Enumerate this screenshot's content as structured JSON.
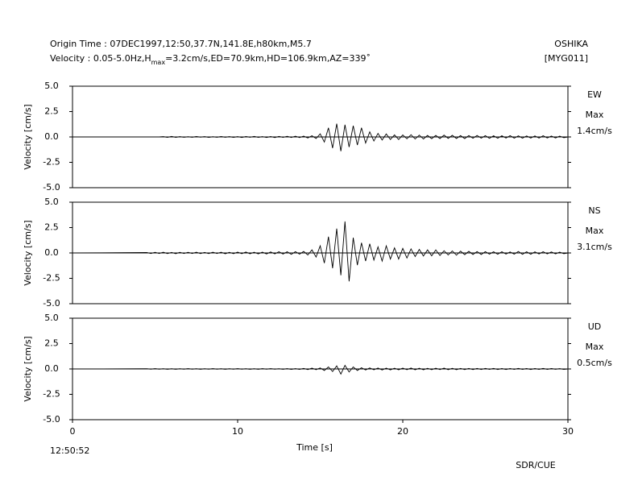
{
  "header": {
    "origin": "Origin Time : 07DEC1997,12:50,37.7N,141.8E,h80km,M5.7",
    "filter_a": "Velocity : 0.05-5.0Hz,H",
    "filter_sub": "max",
    "filter_b": "=3.2cm/s,ED=70.9km,HD=106.9km,AZ=339˚",
    "station": "OSHIKA",
    "code": "[MYG011]"
  },
  "footer": {
    "start_time": "12:50:52",
    "credit": "SDR/CUE"
  },
  "chart_data": [
    {
      "type": "line",
      "ylabel": "Velocity [cm/s]",
      "component": "EW",
      "max_label": "Max",
      "max_value": "1.4cm/s",
      "color": "#000000",
      "ylim": [
        -5,
        5
      ],
      "yticks": [
        {
          "value": 5,
          "label": "5.0"
        },
        {
          "value": 2.5,
          "label": "2.5"
        },
        {
          "value": 0,
          "label": "0.0"
        },
        {
          "value": -2.5,
          "label": "-2.5"
        },
        {
          "value": -5,
          "label": "-5.0"
        }
      ],
      "xlim": [
        0,
        30
      ],
      "x": [
        0,
        4.5,
        4.75,
        5,
        5.25,
        5.5,
        5.75,
        6,
        6.25,
        6.5,
        6.75,
        7,
        7.25,
        7.5,
        7.75,
        8,
        8.25,
        8.5,
        8.75,
        9,
        9.25,
        9.5,
        9.75,
        10,
        10.25,
        10.5,
        10.75,
        11,
        11.25,
        11.5,
        11.75,
        12,
        12.25,
        12.5,
        12.75,
        13,
        13.25,
        13.5,
        13.75,
        14,
        14.25,
        14.5,
        14.75,
        15,
        15.25,
        15.5,
        15.75,
        16,
        16.25,
        16.5,
        16.75,
        17,
        17.25,
        17.5,
        17.75,
        18,
        18.25,
        18.5,
        18.75,
        19,
        19.25,
        19.5,
        19.75,
        20,
        20.25,
        20.5,
        20.75,
        21,
        21.25,
        21.5,
        21.75,
        22,
        22.25,
        22.5,
        22.75,
        23,
        23.25,
        23.5,
        23.75,
        24,
        24.25,
        24.5,
        24.75,
        25,
        25.25,
        25.5,
        25.75,
        26,
        26.25,
        26.5,
        26.75,
        27,
        27.25,
        27.5,
        27.75,
        28,
        28.25,
        28.5,
        28.75,
        29,
        29.25,
        29.5,
        29.75,
        30
      ],
      "values": [
        0,
        0,
        0,
        0,
        0,
        0.03,
        -0.04,
        0.05,
        -0.04,
        0.03,
        -0.03,
        0.02,
        -0.03,
        0.04,
        -0.02,
        0.03,
        -0.04,
        0.02,
        -0.03,
        0.04,
        -0.03,
        0.03,
        -0.04,
        0.03,
        -0.05,
        0.04,
        -0.03,
        0.05,
        -0.04,
        0.03,
        -0.05,
        0.04,
        -0.06,
        0.05,
        -0.04,
        0.06,
        -0.05,
        0.07,
        -0.06,
        0.08,
        -0.1,
        0.12,
        -0.15,
        0.3,
        -0.5,
        0.9,
        -1.1,
        1.3,
        -1.4,
        1.2,
        -1.0,
        1.1,
        -0.8,
        0.9,
        -0.6,
        0.5,
        -0.4,
        0.35,
        -0.3,
        0.3,
        -0.25,
        0.2,
        -0.25,
        0.2,
        -0.18,
        0.22,
        -0.2,
        0.18,
        -0.2,
        0.15,
        -0.17,
        0.15,
        -0.16,
        0.18,
        -0.14,
        0.16,
        -0.15,
        0.13,
        -0.16,
        0.14,
        -0.13,
        0.15,
        -0.12,
        0.13,
        -0.14,
        0.12,
        -0.13,
        0.12,
        -0.11,
        0.13,
        -0.12,
        0.11,
        -0.12,
        0.1,
        -0.11,
        0.1,
        -0.11,
        0.12,
        -0.1,
        0.09,
        -0.1,
        0.08,
        -0.07,
        0
      ]
    },
    {
      "type": "line",
      "ylabel": "Velocity [cm/s]",
      "component": "NS",
      "max_label": "Max",
      "max_value": "3.1cm/s",
      "color": "#000000",
      "ylim": [
        -5,
        5
      ],
      "yticks": [
        {
          "value": 5,
          "label": "5.0"
        },
        {
          "value": 2.5,
          "label": "2.5"
        },
        {
          "value": 0,
          "label": "0.0"
        },
        {
          "value": -2.5,
          "label": "-2.5"
        },
        {
          "value": -5,
          "label": "-5.0"
        }
      ],
      "xlim": [
        0,
        30
      ],
      "x": [
        0,
        4.5,
        4.75,
        5,
        5.25,
        5.5,
        5.75,
        6,
        6.25,
        6.5,
        6.75,
        7,
        7.25,
        7.5,
        7.75,
        8,
        8.25,
        8.5,
        8.75,
        9,
        9.25,
        9.5,
        9.75,
        10,
        10.25,
        10.5,
        10.75,
        11,
        11.25,
        11.5,
        11.75,
        12,
        12.25,
        12.5,
        12.75,
        13,
        13.25,
        13.5,
        13.75,
        14,
        14.25,
        14.5,
        14.75,
        15,
        15.25,
        15.5,
        15.75,
        16,
        16.25,
        16.5,
        16.75,
        17,
        17.25,
        17.5,
        17.75,
        18,
        18.25,
        18.5,
        18.75,
        19,
        19.25,
        19.5,
        19.75,
        20,
        20.25,
        20.5,
        20.75,
        21,
        21.25,
        21.5,
        21.75,
        22,
        22.25,
        22.5,
        22.75,
        23,
        23.25,
        23.5,
        23.75,
        24,
        24.25,
        24.5,
        24.75,
        25,
        25.25,
        25.5,
        25.75,
        26,
        26.25,
        26.5,
        26.75,
        27,
        27.25,
        27.5,
        27.75,
        28,
        28.25,
        28.5,
        28.75,
        29,
        29.25,
        29.5,
        29.75,
        30
      ],
      "values": [
        0,
        0.04,
        -0.05,
        0.06,
        -0.05,
        0.07,
        -0.06,
        0.05,
        -0.07,
        0.06,
        -0.05,
        0.06,
        -0.05,
        0.07,
        -0.06,
        0.05,
        -0.06,
        0.07,
        -0.05,
        0.07,
        -0.08,
        0.06,
        -0.07,
        0.08,
        -0.07,
        0.09,
        -0.08,
        0.07,
        -0.09,
        0.08,
        -0.1,
        0.1,
        -0.09,
        0.12,
        -0.11,
        0.12,
        -0.14,
        0.13,
        -0.12,
        0.15,
        -0.2,
        0.3,
        -0.4,
        0.7,
        -1.0,
        1.6,
        -1.5,
        2.4,
        -2.2,
        3.1,
        -2.8,
        1.5,
        -1.2,
        1.0,
        -0.8,
        0.9,
        -0.7,
        0.6,
        -0.8,
        0.7,
        -0.6,
        0.5,
        -0.6,
        0.45,
        -0.5,
        0.4,
        -0.35,
        0.35,
        -0.3,
        0.3,
        -0.28,
        0.3,
        -0.25,
        0.22,
        -0.2,
        0.2,
        -0.22,
        0.18,
        -0.17,
        0.16,
        -0.15,
        0.14,
        -0.15,
        0.13,
        -0.12,
        0.12,
        -0.13,
        0.12,
        -0.11,
        0.1,
        -0.12,
        0.15,
        -0.14,
        0.12,
        -0.13,
        0.11,
        -0.1,
        0.12,
        -0.09,
        0.1,
        -0.09,
        0.08,
        -0.07,
        0
      ]
    },
    {
      "type": "line",
      "ylabel": "Velocity [cm/s]",
      "component": "UD",
      "max_label": "Max",
      "max_value": "0.5cm/s",
      "color": "#000000",
      "ylim": [
        -5,
        5
      ],
      "yticks": [
        {
          "value": 5,
          "label": "5.0"
        },
        {
          "value": 2.5,
          "label": "2.5"
        },
        {
          "value": 0,
          "label": "0.0"
        },
        {
          "value": -2.5,
          "label": "-2.5"
        },
        {
          "value": -5,
          "label": "-5.0"
        }
      ],
      "xlim": [
        0,
        30
      ],
      "xticks": [
        0,
        10,
        20,
        30
      ],
      "xlabel": "Time [s]",
      "x": [
        0,
        4.5,
        4.75,
        5,
        5.25,
        5.5,
        5.75,
        6,
        6.25,
        6.5,
        6.75,
        7,
        7.25,
        7.5,
        7.75,
        8,
        8.25,
        8.5,
        8.75,
        9,
        9.25,
        9.5,
        9.75,
        10,
        10.25,
        10.5,
        10.75,
        11,
        11.25,
        11.5,
        11.75,
        12,
        12.25,
        12.5,
        12.75,
        13,
        13.25,
        13.5,
        13.75,
        14,
        14.25,
        14.5,
        14.75,
        15,
        15.25,
        15.5,
        15.75,
        16,
        16.25,
        16.5,
        16.75,
        17,
        17.25,
        17.5,
        17.75,
        18,
        18.25,
        18.5,
        18.75,
        19,
        19.25,
        19.5,
        19.75,
        20,
        20.25,
        20.5,
        20.75,
        21,
        21.25,
        21.5,
        21.75,
        22,
        22.25,
        22.5,
        22.75,
        23,
        23.25,
        23.5,
        23.75,
        24,
        24.25,
        24.5,
        24.75,
        25,
        25.25,
        25.5,
        25.75,
        26,
        26.25,
        26.5,
        26.75,
        27,
        27.25,
        27.5,
        27.75,
        28,
        28.25,
        28.5,
        28.75,
        29,
        29.25,
        29.5,
        29.75,
        30
      ],
      "values": [
        0,
        0.02,
        -0.02,
        0.03,
        -0.02,
        0.02,
        -0.03,
        0.02,
        -0.03,
        0.02,
        -0.02,
        0.03,
        -0.02,
        0.02,
        -0.03,
        0.02,
        -0.02,
        0.03,
        -0.02,
        0.02,
        -0.03,
        0.02,
        -0.02,
        0.03,
        -0.02,
        0.02,
        -0.03,
        0.02,
        -0.03,
        0.03,
        -0.02,
        0.03,
        -0.02,
        0.02,
        -0.03,
        0.03,
        -0.04,
        0.03,
        -0.04,
        0.05,
        -0.06,
        0.08,
        -0.07,
        0.1,
        -0.15,
        0.2,
        -0.25,
        0.3,
        -0.5,
        0.35,
        -0.3,
        0.2,
        -0.15,
        0.12,
        -0.1,
        0.1,
        -0.08,
        0.09,
        -0.1,
        0.08,
        -0.09,
        0.07,
        -0.08,
        0.08,
        -0.07,
        0.09,
        -0.08,
        0.07,
        -0.08,
        0.06,
        -0.07,
        0.07,
        -0.06,
        0.08,
        -0.07,
        0.06,
        -0.07,
        0.05,
        -0.06,
        0.05,
        -0.06,
        0.05,
        -0.05,
        0.05,
        -0.04,
        0.05,
        -0.05,
        0.04,
        -0.05,
        0.04,
        -0.04,
        0.05,
        -0.04,
        0.04,
        -0.05,
        0.04,
        -0.04,
        0.05,
        -0.04,
        0.04,
        -0.03,
        0.03,
        -0.04,
        0
      ]
    }
  ]
}
